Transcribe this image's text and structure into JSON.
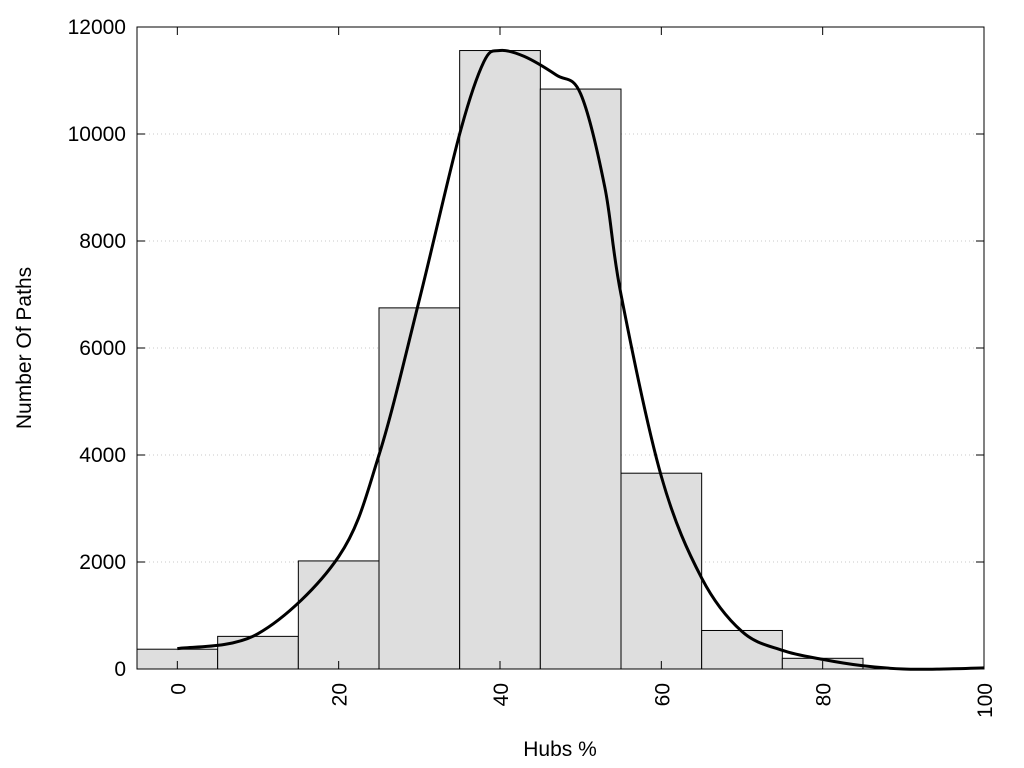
{
  "chart_data": {
    "type": "bar",
    "title": "",
    "xlabel": "Hubs %",
    "ylabel": "Number Of Paths",
    "xlim": [
      -5,
      100
    ],
    "ylim": [
      0,
      12000
    ],
    "bin_width": 10,
    "bin_centers": [
      0,
      10,
      20,
      30,
      40,
      50,
      60,
      70,
      80
    ],
    "values": [
      370,
      610,
      2020,
      6750,
      11560,
      10840,
      3660,
      720,
      200
    ],
    "x_ticks": [
      0,
      20,
      40,
      60,
      80,
      100
    ],
    "x_tick_labels": [
      "0",
      "20",
      "40",
      "60",
      "80",
      "100"
    ],
    "y_ticks": [
      0,
      2000,
      4000,
      6000,
      8000,
      10000,
      12000
    ],
    "y_tick_labels": [
      "0",
      "2000",
      "4000",
      "6000",
      "8000",
      "10000",
      "12000"
    ],
    "x_tick_rotation": "vertical",
    "grid": "horizontal dotted",
    "bar_color": "#dedede",
    "curve": {
      "type": "smooth line",
      "x": [
        0,
        10,
        20,
        25,
        30,
        35,
        38,
        40,
        43,
        47,
        50,
        53,
        55,
        60,
        65,
        70,
        75,
        80,
        85,
        90,
        95,
        100
      ],
      "y": [
        380,
        660,
        2100,
        4000,
        6900,
        10000,
        11350,
        11560,
        11450,
        11100,
        10750,
        9000,
        7000,
        3600,
        1700,
        700,
        350,
        180,
        60,
        0,
        0,
        20
      ]
    },
    "colors": {
      "bars": "#dedede",
      "bar_edge": "#000000",
      "curve": "#000000",
      "grid": "#c8c8c8"
    }
  }
}
